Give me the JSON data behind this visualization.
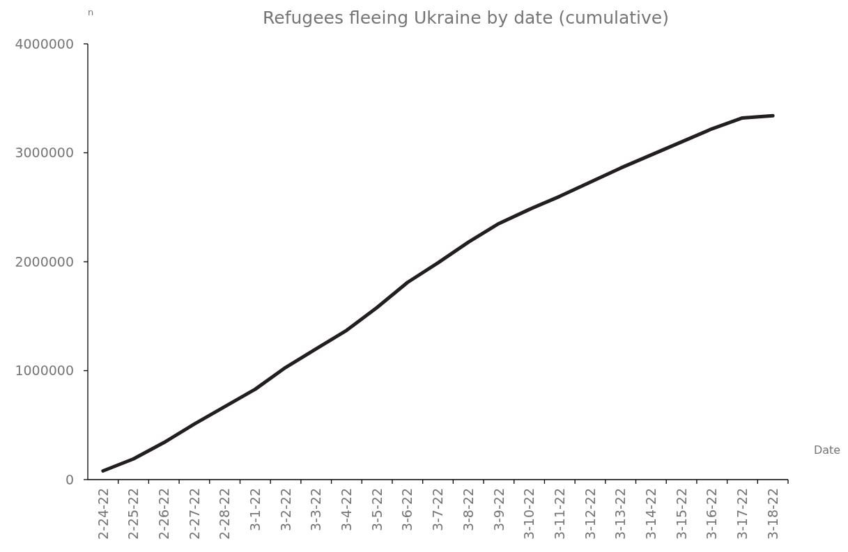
{
  "chart_data": {
    "type": "line",
    "title": "Refugees fleeing Ukraine by date (cumulative)",
    "xlabel": "Date",
    "ylabel": "n",
    "categories": [
      "2-24-22",
      "2-25-22",
      "2-26-22",
      "2-27-22",
      "2-28-22",
      "3-1-22",
      "3-2-22",
      "3-3-22",
      "3-4-22",
      "3-5-22",
      "3-6-22",
      "3-7-22",
      "3-8-22",
      "3-9-22",
      "3-10-22",
      "3-11-22",
      "3-12-22",
      "3-13-22",
      "3-14-22",
      "3-15-22",
      "3-16-22",
      "3-17-22",
      "3-18-22"
    ],
    "series": [
      {
        "color": "#231f20",
        "values": [
          80000,
          190000,
          340000,
          510000,
          670000,
          830000,
          1030000,
          1200000,
          1370000,
          1580000,
          1810000,
          1990000,
          2180000,
          2350000,
          2480000,
          2600000,
          2730000,
          2860000,
          2980000,
          3100000,
          3220000,
          3320000,
          3340000
        ]
      }
    ],
    "ylim": [
      0,
      4000000
    ],
    "yticks": [
      0,
      1000000,
      2000000,
      3000000,
      4000000
    ],
    "grid": false,
    "marker": "none",
    "line_style": "solid"
  }
}
